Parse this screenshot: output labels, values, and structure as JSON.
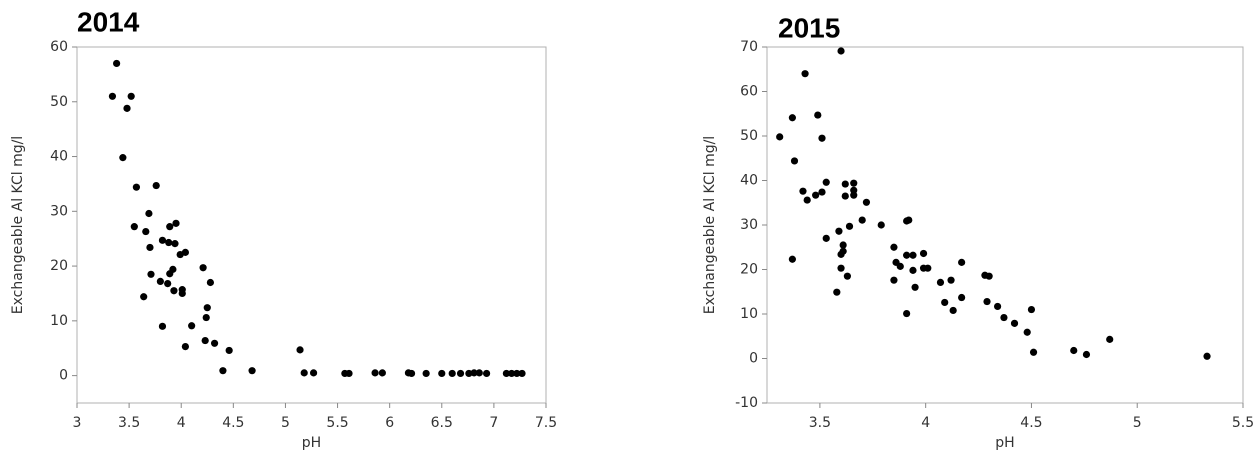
{
  "chart_data": [
    {
      "type": "scatter",
      "title": "2014",
      "x_label": "pH",
      "y_label": "Exchangeable Al KCl mg/l",
      "color": "#000000",
      "xlim": [
        3,
        7.5
      ],
      "xticks": [
        3,
        3.5,
        4,
        4.5,
        5,
        5.5,
        6,
        6.5,
        7,
        7.5
      ],
      "ylim": [
        -5,
        60
      ],
      "yticks": [
        0,
        10,
        20,
        30,
        40,
        50,
        60
      ],
      "x": [
        3.34,
        3.38,
        3.48,
        3.52,
        3.44,
        3.57,
        3.76,
        3.55,
        3.69,
        3.66,
        3.7,
        3.82,
        3.89,
        3.95,
        3.88,
        3.94,
        4.04,
        3.99,
        3.71,
        3.8,
        3.87,
        3.92,
        3.89,
        3.64,
        3.93,
        4.01,
        4.01,
        4.21,
        4.28,
        4.25,
        4.24,
        3.82,
        4.1,
        4.23,
        4.32,
        4.04,
        4.46,
        4.4,
        4.68,
        5.14,
        5.18,
        5.27,
        5.57,
        5.61,
        5.86,
        5.93,
        6.18,
        6.21,
        6.35,
        6.5,
        6.6,
        6.68,
        6.76,
        6.81,
        6.86,
        6.93,
        7.12,
        7.17,
        7.22,
        7.27
      ],
      "values": [
        51,
        57,
        48.8,
        51,
        39.8,
        34.4,
        34.7,
        27.2,
        29.6,
        26.3,
        23.4,
        24.7,
        27.2,
        27.8,
        24.3,
        24.1,
        22.5,
        22.1,
        18.5,
        17.2,
        16.8,
        19.4,
        18.6,
        14.4,
        15.5,
        15.7,
        15,
        19.7,
        17,
        12.4,
        10.6,
        9,
        9.1,
        6.4,
        5.9,
        5.3,
        4.6,
        0.9,
        0.9,
        4.7,
        0.5,
        0.5,
        0.4,
        0.4,
        0.5,
        0.5,
        0.5,
        0.4,
        0.4,
        0.4,
        0.4,
        0.4,
        0.4,
        0.5,
        0.5,
        0.4,
        0.4,
        0.4,
        0.4,
        0.4
      ]
    },
    {
      "type": "scatter",
      "title": "2015",
      "x_label": "pH",
      "y_label": "Exchangeable Al KCl mg/l",
      "color": "#000000",
      "xlim": [
        3.25,
        5.5
      ],
      "xticks": [
        3.5,
        4,
        4.5,
        5,
        5.5
      ],
      "ylim": [
        -10,
        70
      ],
      "yticks": [
        -10,
        0,
        10,
        20,
        30,
        40,
        50,
        60,
        70
      ],
      "x": [
        3.31,
        3.37,
        3.38,
        3.37,
        3.43,
        3.42,
        3.44,
        3.48,
        3.49,
        3.51,
        3.51,
        3.53,
        3.53,
        3.6,
        3.59,
        3.58,
        3.6,
        3.6,
        3.61,
        3.61,
        3.63,
        3.62,
        3.62,
        3.64,
        3.66,
        3.66,
        3.66,
        3.72,
        3.7,
        3.79,
        3.85,
        3.86,
        3.85,
        3.88,
        3.91,
        3.91,
        3.92,
        3.94,
        3.94,
        3.95,
        3.91,
        3.99,
        3.99,
        4.01,
        4.07,
        4.09,
        4.12,
        4.13,
        4.17,
        4.17,
        4.28,
        4.3,
        4.29,
        4.34,
        4.37,
        4.42,
        4.48,
        4.5,
        4.51,
        4.7,
        4.76,
        4.87,
        5.33
      ],
      "values": [
        49.8,
        54.1,
        44.4,
        22.3,
        64,
        37.6,
        35.6,
        36.7,
        54.7,
        37.4,
        49.5,
        39.6,
        27,
        69.1,
        28.6,
        14.9,
        23.4,
        20.3,
        25.5,
        24.1,
        18.5,
        39.2,
        36.5,
        29.7,
        39.4,
        37.8,
        36.7,
        35.1,
        31.1,
        30,
        25,
        21.6,
        17.6,
        20.7,
        23.2,
        30.9,
        31.1,
        23.2,
        19.8,
        16,
        10.1,
        23.6,
        20.3,
        20.3,
        17.1,
        12.6,
        17.6,
        10.8,
        21.6,
        13.7,
        18.7,
        18.5,
        12.8,
        11.7,
        9.2,
        7.9,
        5.9,
        11,
        1.4,
        1.8,
        0.9,
        4.3,
        0.5
      ]
    }
  ]
}
